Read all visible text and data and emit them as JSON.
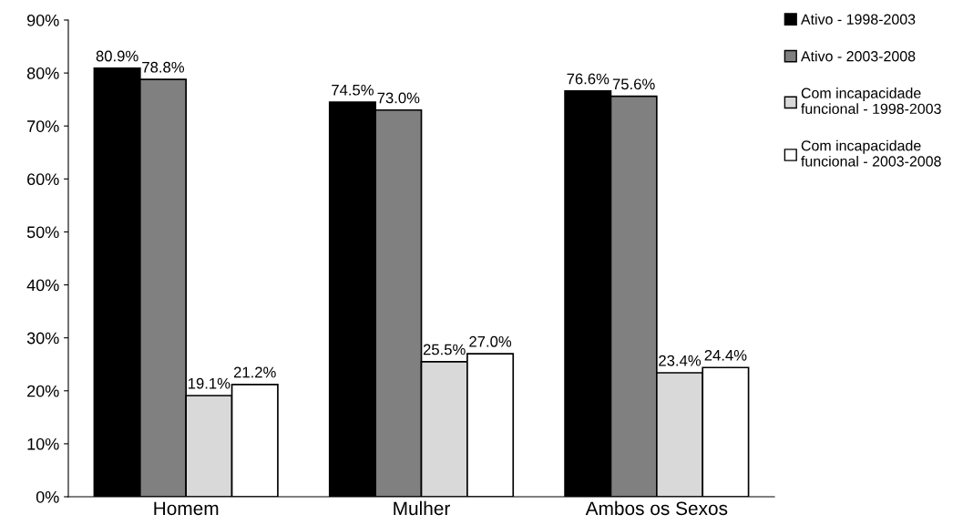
{
  "chart_data": {
    "type": "bar",
    "categories": [
      "Homem",
      "Mulher",
      "Ambos os Sexos"
    ],
    "series": [
      {
        "name": "Ativo - 1998-2003",
        "color": "#000000",
        "values": [
          80.9,
          74.5,
          76.6
        ],
        "value_labels": [
          "80.9%",
          "74.5%",
          "76.6%"
        ]
      },
      {
        "name": "Ativo - 2003-2008",
        "color": "#808080",
        "values": [
          78.8,
          73.0,
          75.6
        ],
        "value_labels": [
          "78.8%",
          "73.0%",
          "75.6%"
        ]
      },
      {
        "name": "Com incapacidade\nfuncional - 1998-2003",
        "color": "#d9d9d9",
        "values": [
          19.1,
          25.5,
          23.4
        ],
        "value_labels": [
          "19.1%",
          "25.5%",
          "23.4%"
        ]
      },
      {
        "name": "Com incapacidade\nfuncional - 2003-2008",
        "color": "#ffffff",
        "values": [
          21.2,
          27.0,
          24.4
        ],
        "value_labels": [
          "21.2%",
          "27.0%",
          "24.4%"
        ]
      }
    ],
    "ylim": [
      0,
      90
    ],
    "yticks": [
      {
        "value": 0,
        "label": "0%"
      },
      {
        "value": 10,
        "label": "10%"
      },
      {
        "value": 20,
        "label": "20%"
      },
      {
        "value": 30,
        "label": "30%"
      },
      {
        "value": 40,
        "label": "40%"
      },
      {
        "value": 50,
        "label": "50%"
      },
      {
        "value": 60,
        "label": "60%"
      },
      {
        "value": 70,
        "label": "70%"
      },
      {
        "value": 80,
        "label": "80%"
      },
      {
        "value": 90,
        "label": "90%"
      }
    ],
    "legend": "right",
    "grid": false
  }
}
